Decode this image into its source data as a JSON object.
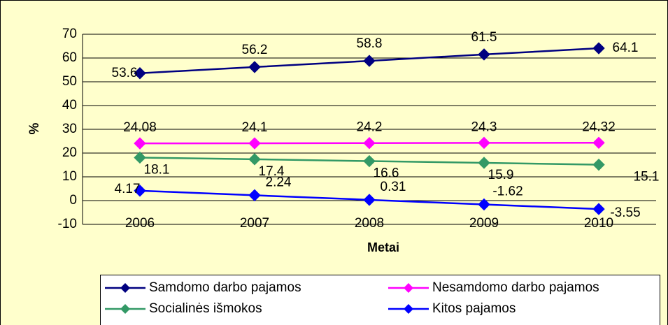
{
  "chart_data": {
    "type": "line",
    "categories": [
      "2006",
      "2007",
      "2008",
      "2009",
      "2010"
    ],
    "series": [
      {
        "name": "Samdomo darbo pajamos",
        "color": "#000080",
        "values": [
          53.6,
          56.2,
          58.8,
          61.5,
          64.1
        ]
      },
      {
        "name": "Nesamdomo darbo pajamos",
        "color": "#ff00ff",
        "values": [
          24.08,
          24.1,
          24.2,
          24.3,
          24.32
        ]
      },
      {
        "name": "Socialinės išmokos",
        "color": "#339966",
        "values": [
          18.1,
          17.4,
          16.6,
          15.9,
          15.1
        ]
      },
      {
        "name": "Kitos pajamos",
        "color": "#0000ff",
        "values": [
          4.17,
          2.24,
          0.31,
          -1.62,
          -3.55
        ]
      }
    ],
    "ylim": [
      -10,
      70
    ],
    "yticks": [
      -10,
      0,
      10,
      20,
      30,
      40,
      50,
      60,
      70
    ],
    "ylabel": "%",
    "xlabel": "Metai",
    "grid": true,
    "legend": "bottom"
  }
}
